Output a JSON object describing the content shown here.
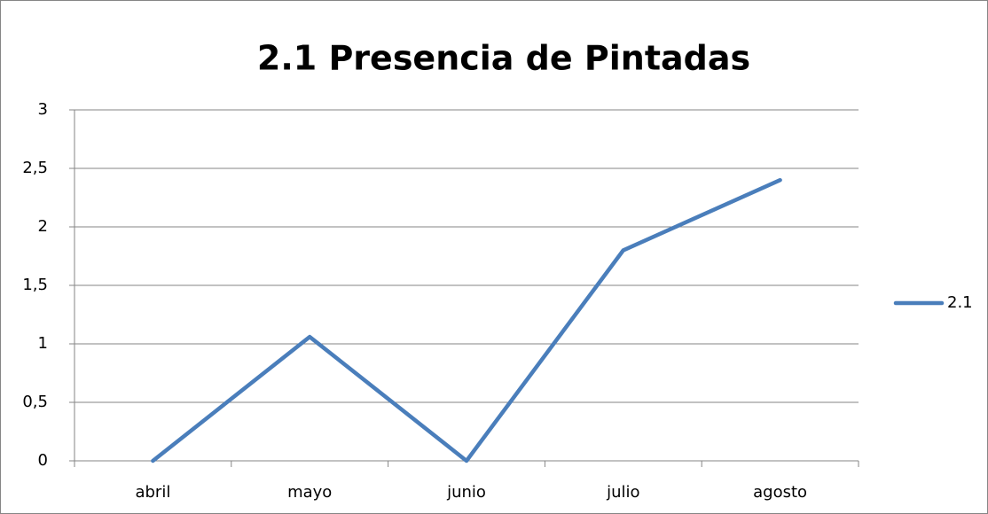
{
  "chart_data": {
    "type": "line",
    "title": "2.1 Presencia de Pintadas",
    "categories": [
      "abril",
      "mayo",
      "junio",
      "julio",
      "agosto"
    ],
    "series": [
      {
        "name": "2.1",
        "color": "#4a7ebb",
        "values": [
          0,
          1.06,
          0,
          1.8,
          2.4
        ]
      }
    ],
    "ylim": [
      0,
      3
    ],
    "yticks": [
      0,
      {
        "value": 0.5,
        "label": "0,5"
      },
      1,
      {
        "value": 1.5,
        "label": "1,5"
      },
      2,
      {
        "value": 2.5,
        "label": "2,5"
      },
      3
    ],
    "grid": true,
    "legend": "right"
  }
}
